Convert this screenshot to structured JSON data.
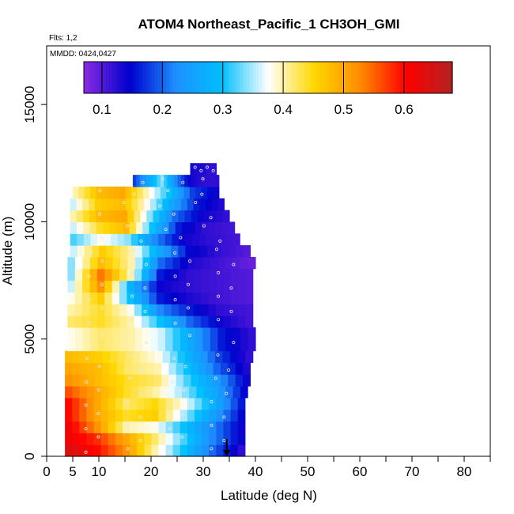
{
  "chart_data": {
    "type": "heatmap",
    "title": "ATOM4 Northeast_Pacific_1 CH3OH_GMI",
    "flights_note": "Flts: 1,2",
    "date_note": "MMDD: 0424,0427",
    "xlabel": "Latitude (deg N)",
    "ylabel": "Altitude (m)",
    "xlim": [
      0,
      85
    ],
    "ylim": [
      0,
      17500
    ],
    "x_ticks": [
      "0",
      "5",
      "10",
      "20",
      "30",
      "40",
      "50",
      "60",
      "70",
      "80"
    ],
    "x_tick_values": [
      0,
      5,
      10,
      20,
      30,
      40,
      50,
      60,
      70,
      80
    ],
    "y_ticks": [
      "0",
      "5000",
      "10000",
      "15000"
    ],
    "y_tick_values": [
      0,
      5000,
      10000,
      15000
    ],
    "colorbar": {
      "range": [
        0.07,
        0.68
      ],
      "ticks": [
        "0.1",
        "0.2",
        "0.3",
        "0.4",
        "0.5",
        "0.6"
      ],
      "tick_values": [
        0.1,
        0.2,
        0.3,
        0.4,
        0.5,
        0.6
      ],
      "colors": [
        "#8a2be2",
        "#0000cd",
        "#1e90ff",
        "#00bfff",
        "#ffffff",
        "#ffd700",
        "#ff8c00",
        "#ff0000",
        "#b22222"
      ]
    },
    "marker": {
      "latitude": 34.5,
      "label": "arrow"
    },
    "series": [
      {
        "alt_range": [
          0,
          500
        ],
        "lat_range": [
          3.5,
          38
        ],
        "values": [
          0.64,
          0.6,
          0.52,
          0.4,
          0.3,
          0.2,
          0.12
        ]
      },
      {
        "alt_range": [
          500,
          1000
        ],
        "lat_range": [
          3.5,
          38
        ],
        "values": [
          0.62,
          0.58,
          0.5,
          0.42,
          0.32,
          0.22,
          0.14
        ]
      },
      {
        "alt_range": [
          1000,
          1500
        ],
        "lat_range": [
          3.5,
          38
        ],
        "values": [
          0.62,
          0.52,
          0.4,
          0.38,
          0.3,
          0.22,
          0.14
        ]
      },
      {
        "alt_range": [
          1500,
          2000
        ],
        "lat_range": [
          3.5,
          38
        ],
        "values": [
          0.6,
          0.5,
          0.44,
          0.46,
          0.35,
          0.25,
          0.15
        ]
      },
      {
        "alt_range": [
          2000,
          2500
        ],
        "lat_range": [
          3.5,
          38
        ],
        "values": [
          0.6,
          0.5,
          0.42,
          0.45,
          0.38,
          0.28,
          0.16
        ]
      },
      {
        "alt_range": [
          2500,
          3000
        ],
        "lat_range": [
          3.5,
          38.5
        ],
        "values": [
          0.56,
          0.5,
          0.44,
          0.4,
          0.34,
          0.26,
          0.15
        ]
      },
      {
        "alt_range": [
          3000,
          3500
        ],
        "lat_range": [
          3.5,
          39
        ],
        "values": [
          0.52,
          0.48,
          0.44,
          0.42,
          0.32,
          0.24,
          0.14
        ]
      },
      {
        "alt_range": [
          3500,
          4000
        ],
        "lat_range": [
          3.5,
          39
        ],
        "values": [
          0.5,
          0.48,
          0.42,
          0.4,
          0.3,
          0.2,
          0.13
        ]
      },
      {
        "alt_range": [
          4000,
          4500
        ],
        "lat_range": [
          3.5,
          39.5
        ],
        "values": [
          0.48,
          0.46,
          0.42,
          0.38,
          0.28,
          0.18,
          0.12
        ]
      },
      {
        "alt_range": [
          4500,
          5500
        ],
        "lat_range": [
          4,
          40
        ],
        "values": [
          0.38,
          0.42,
          0.4,
          0.36,
          0.26,
          0.16,
          0.12
        ]
      },
      {
        "alt_range": [
          5500,
          6000
        ],
        "lat_range": [
          4,
          39.5
        ],
        "values": [
          0.42,
          0.44,
          0.4,
          0.3,
          0.2,
          0.14,
          0.11
        ]
      },
      {
        "alt_range": [
          6000,
          6500
        ],
        "lat_range": [
          4,
          39.5
        ],
        "values": [
          0.4,
          0.44,
          0.38,
          0.22,
          0.16,
          0.12,
          0.11
        ]
      },
      {
        "alt_range": [
          6500,
          7000
        ],
        "lat_range": [
          4,
          39.5
        ],
        "values": [
          0.38,
          0.46,
          0.3,
          0.16,
          0.13,
          0.11,
          0.1
        ]
      },
      {
        "alt_range": [
          7000,
          7500
        ],
        "lat_range": [
          4,
          39.5
        ],
        "values": [
          0.36,
          0.52,
          0.28,
          0.14,
          0.12,
          0.11,
          0.1
        ]
      },
      {
        "alt_range": [
          7500,
          8000
        ],
        "lat_range": [
          4,
          39.5
        ],
        "values": [
          0.34,
          0.54,
          0.4,
          0.16,
          0.12,
          0.11,
          0.1
        ]
      },
      {
        "alt_range": [
          8000,
          8500
        ],
        "lat_range": [
          4,
          40
        ],
        "values": [
          0.34,
          0.48,
          0.4,
          0.2,
          0.13,
          0.11,
          0.09
        ]
      },
      {
        "alt_range": [
          8500,
          9000
        ],
        "lat_range": [
          4.5,
          39
        ],
        "values": [
          0.36,
          0.46,
          0.4,
          0.26,
          0.15,
          0.12,
          0.1
        ]
      },
      {
        "alt_range": [
          9000,
          9500
        ],
        "lat_range": [
          4.5,
          37
        ],
        "values": [
          0.32,
          0.38,
          0.34,
          0.22,
          0.14,
          0.12,
          0.11
        ]
      },
      {
        "alt_range": [
          9500,
          10000
        ],
        "lat_range": [
          4.5,
          36
        ],
        "values": [
          0.36,
          0.44,
          0.48,
          0.3,
          0.16,
          0.12,
          0.11
        ]
      },
      {
        "alt_range": [
          10000,
          10500
        ],
        "lat_range": [
          4.5,
          35
        ],
        "values": [
          0.4,
          0.48,
          0.5,
          0.34,
          0.2,
          0.14,
          0.12
        ]
      },
      {
        "alt_range": [
          10500,
          11000
        ],
        "lat_range": [
          4.5,
          34
        ],
        "values": [
          0.36,
          0.46,
          0.48,
          0.38,
          0.26,
          0.16,
          0.13
        ]
      },
      {
        "alt_range": [
          11000,
          11500
        ],
        "lat_range": [
          5,
          33
        ],
        "values": [
          0.4,
          0.48,
          0.5,
          0.4,
          0.3,
          0.18,
          0.14
        ]
      },
      {
        "alt_range": [
          11500,
          12000
        ],
        "lat_range": [
          16.5,
          33
        ],
        "values": [
          0.18,
          0.26,
          0.34,
          0.22,
          0.14,
          0.12,
          0.12
        ]
      },
      {
        "alt_range": [
          12000,
          12500
        ],
        "lat_range": [
          27.5,
          32.5
        ],
        "values": [
          0.14,
          0.13,
          0.13,
          0.13,
          0.12,
          0.12,
          0.12
        ]
      }
    ]
  }
}
